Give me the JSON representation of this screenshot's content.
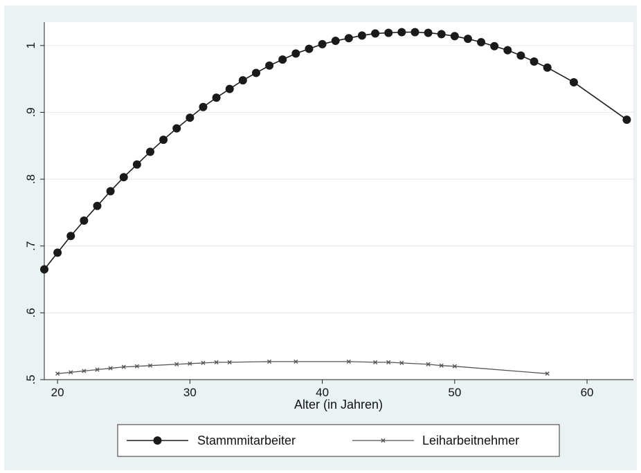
{
  "chart_data": {
    "type": "line",
    "title": "",
    "xlabel": "Alter (in Jahren)",
    "ylabel": "",
    "xlim": [
      19,
      63.5
    ],
    "ylim": [
      0.5,
      1.035
    ],
    "xticks": [
      20,
      30,
      40,
      50,
      60
    ],
    "yticks": [
      0.5,
      0.6,
      0.7,
      0.8,
      0.9,
      1.0
    ],
    "ytick_labels": [
      ".5",
      ".6",
      ".7",
      ".8",
      ".9",
      "1"
    ],
    "grid": true,
    "legend_position": "bottom",
    "series": [
      {
        "name": "Stammmitarbeiter",
        "marker": "circle",
        "color": "#1a1a1a",
        "x": [
          19,
          20,
          21,
          22,
          23,
          24,
          25,
          26,
          27,
          28,
          29,
          30,
          31,
          32,
          33,
          34,
          35,
          36,
          37,
          38,
          39,
          40,
          41,
          42,
          43,
          44,
          45,
          46,
          47,
          48,
          49,
          50,
          51,
          52,
          53,
          54,
          55,
          56,
          57,
          59,
          63
        ],
        "y": [
          0.665,
          0.69,
          0.715,
          0.738,
          0.76,
          0.782,
          0.803,
          0.822,
          0.841,
          0.859,
          0.876,
          0.892,
          0.908,
          0.922,
          0.935,
          0.948,
          0.959,
          0.97,
          0.979,
          0.988,
          0.995,
          1.002,
          1.007,
          1.011,
          1.015,
          1.018,
          1.019,
          1.02,
          1.02,
          1.019,
          1.017,
          1.014,
          1.01,
          1.005,
          0.999,
          0.993,
          0.985,
          0.976,
          0.967,
          0.945,
          0.889
        ]
      },
      {
        "name": "Leiharbeitnehmer",
        "marker": "x",
        "color": "#555555",
        "x": [
          20,
          21,
          22,
          23,
          24,
          25,
          26,
          27,
          29,
          30,
          31,
          32,
          33,
          36,
          38,
          42,
          44,
          45,
          46,
          48,
          49,
          50,
          57
        ],
        "y": [
          0.509,
          0.511,
          0.513,
          0.515,
          0.517,
          0.519,
          0.52,
          0.521,
          0.523,
          0.524,
          0.525,
          0.526,
          0.526,
          0.527,
          0.527,
          0.527,
          0.526,
          0.526,
          0.525,
          0.523,
          0.521,
          0.52,
          0.509
        ]
      }
    ]
  }
}
